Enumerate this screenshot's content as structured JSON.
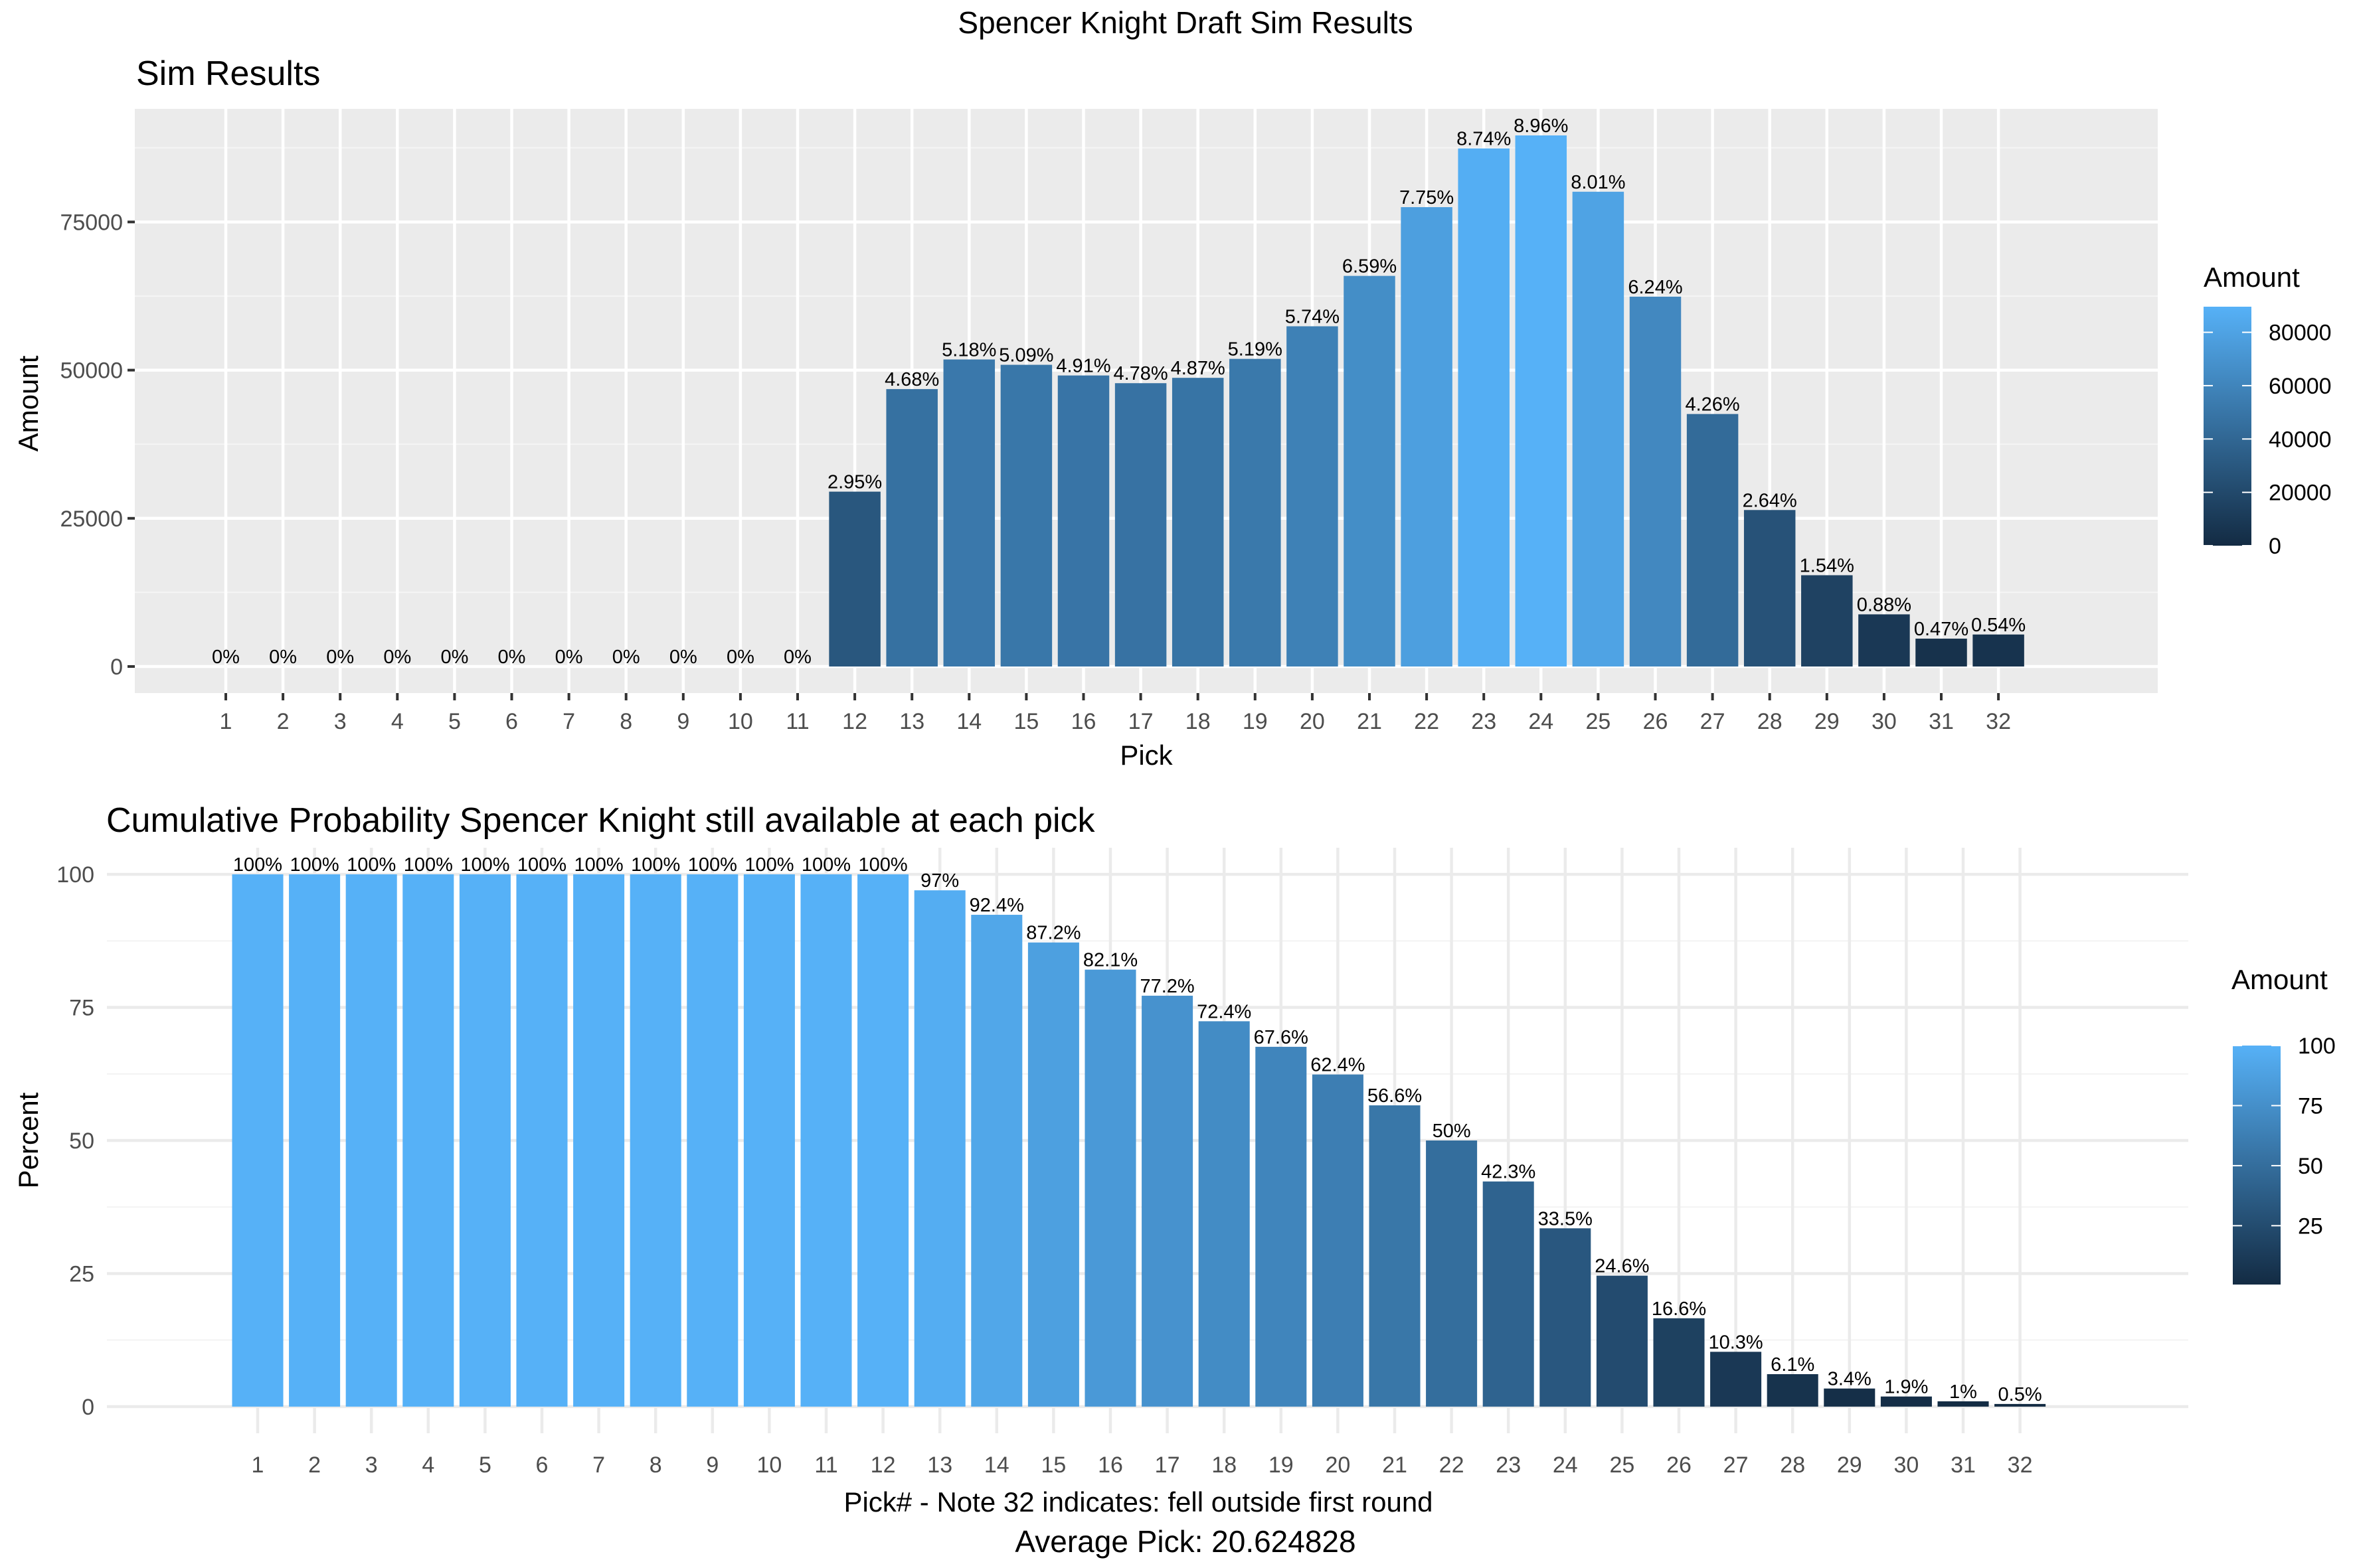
{
  "figure": {
    "main_title": "Spencer Knight Draft Sim Results",
    "footer": "Average Pick: 20.624828"
  },
  "chart_data": [
    {
      "type": "bar",
      "title": "Sim Results",
      "xlabel": "Pick",
      "ylabel": "Amount",
      "theme": "gray",
      "grid": true,
      "legend": {
        "title": "Amount",
        "placement": "right",
        "ticks": [
          "0",
          "20000",
          "40000",
          "60000",
          "80000"
        ],
        "tick_values": [
          0,
          20000,
          40000,
          60000,
          80000
        ],
        "range": [
          0,
          89600
        ],
        "low_color": "#132B43",
        "high_color": "#56B1F7"
      },
      "categories": [
        "1",
        "2",
        "3",
        "4",
        "5",
        "6",
        "7",
        "8",
        "9",
        "10",
        "11",
        "12",
        "13",
        "14",
        "15",
        "16",
        "17",
        "18",
        "19",
        "20",
        "21",
        "22",
        "23",
        "24",
        "25",
        "26",
        "27",
        "28",
        "29",
        "30",
        "31",
        "32"
      ],
      "values": [
        0,
        0,
        0,
        0,
        0,
        0,
        0,
        0,
        0,
        0,
        0,
        29500,
        46800,
        51800,
        50900,
        49100,
        47800,
        48700,
        51900,
        57400,
        65900,
        77500,
        87400,
        89600,
        80100,
        62400,
        42600,
        26400,
        15400,
        8800,
        4700,
        5400
      ],
      "labels": [
        "0%",
        "0%",
        "0%",
        "0%",
        "0%",
        "0%",
        "0%",
        "0%",
        "0%",
        "0%",
        "0%",
        "2.95%",
        "4.68%",
        "5.18%",
        "5.09%",
        "4.91%",
        "4.78%",
        "4.87%",
        "5.19%",
        "5.74%",
        "6.59%",
        "7.75%",
        "8.74%",
        "8.96%",
        "8.01%",
        "6.24%",
        "4.26%",
        "2.64%",
        "1.54%",
        "0.88%",
        "0.47%",
        "0.54%"
      ],
      "yticks": [
        0,
        25000,
        50000,
        75000
      ],
      "ytick_labels": [
        "0",
        "25000",
        "50000",
        "75000"
      ],
      "ylim": [
        -4480,
        94080
      ]
    },
    {
      "type": "bar",
      "title": "Cumulative Probability Spencer Knight still available at each pick",
      "xlabel": "Pick# - Note 32 indicates: fell outside first round",
      "ylabel": "Percent",
      "theme": "minimal",
      "grid": true,
      "legend": {
        "title": "Amount",
        "placement": "right",
        "ticks": [
          "25",
          "50",
          "75",
          "100"
        ],
        "tick_values": [
          25,
          50,
          75,
          100
        ],
        "range": [
          0.5,
          100
        ],
        "low_color": "#132B43",
        "high_color": "#56B1F7"
      },
      "categories": [
        "1",
        "2",
        "3",
        "4",
        "5",
        "6",
        "7",
        "8",
        "9",
        "10",
        "11",
        "12",
        "13",
        "14",
        "15",
        "16",
        "17",
        "18",
        "19",
        "20",
        "21",
        "22",
        "23",
        "24",
        "25",
        "26",
        "27",
        "28",
        "29",
        "30",
        "31",
        "32"
      ],
      "values": [
        100,
        100,
        100,
        100,
        100,
        100,
        100,
        100,
        100,
        100,
        100,
        100,
        97,
        92.4,
        87.2,
        82.1,
        77.2,
        72.4,
        67.6,
        62.4,
        56.6,
        50,
        42.3,
        33.5,
        24.6,
        16.6,
        10.3,
        6.1,
        3.4,
        1.9,
        1,
        0.5
      ],
      "labels": [
        "100%",
        "100%",
        "100%",
        "100%",
        "100%",
        "100%",
        "100%",
        "100%",
        "100%",
        "100%",
        "100%",
        "100%",
        "97%",
        "92.4%",
        "87.2%",
        "82.1%",
        "77.2%",
        "72.4%",
        "67.6%",
        "62.4%",
        "56.6%",
        "50%",
        "42.3%",
        "33.5%",
        "24.6%",
        "16.6%",
        "10.3%",
        "6.1%",
        "3.4%",
        "1.9%",
        "1%",
        "0.5%"
      ],
      "yticks": [
        0,
        25,
        50,
        75,
        100
      ],
      "ytick_labels": [
        "0",
        "25",
        "50",
        "75",
        "100"
      ],
      "ylim": [
        -5,
        105
      ]
    }
  ]
}
